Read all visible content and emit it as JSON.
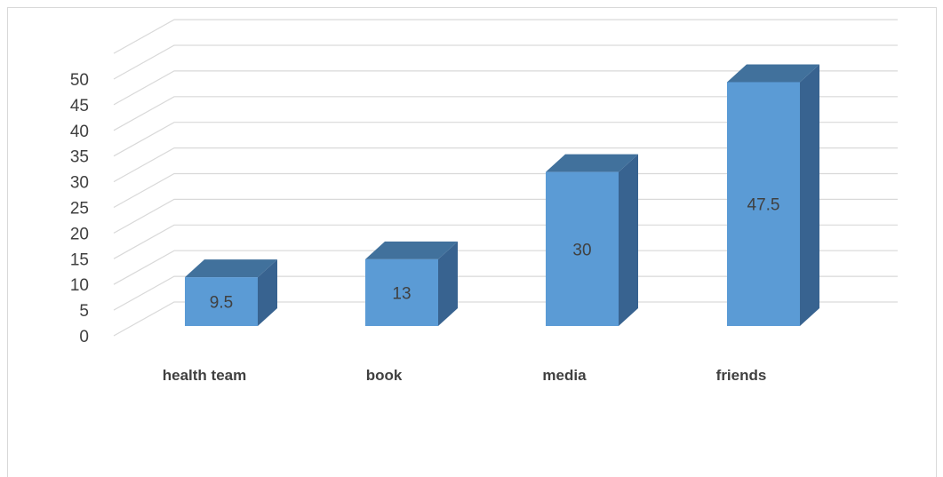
{
  "chart_data": {
    "type": "bar",
    "categories": [
      "health team",
      "book",
      "media",
      "friends"
    ],
    "values": [
      9.5,
      13,
      30,
      47.5
    ],
    "data_labels": [
      "9.5",
      "13",
      "30",
      "47.5"
    ],
    "title": "",
    "xlabel": "",
    "ylabel": "",
    "ylim": [
      0,
      50
    ],
    "yticks": [
      0,
      5,
      10,
      15,
      20,
      25,
      30,
      35,
      40,
      45,
      50
    ],
    "ytick_labels": [
      "0",
      "5",
      "10",
      "15",
      "20",
      "25",
      "30",
      "35",
      "40",
      "45",
      "50"
    ],
    "grid": true,
    "legend": "none",
    "style": "3d-column",
    "colors": {
      "bar_front": "#5b9bd5",
      "bar_top": "#41719c",
      "bar_side": "#386390",
      "grid": "#d9d9d9",
      "text": "#404040"
    }
  }
}
